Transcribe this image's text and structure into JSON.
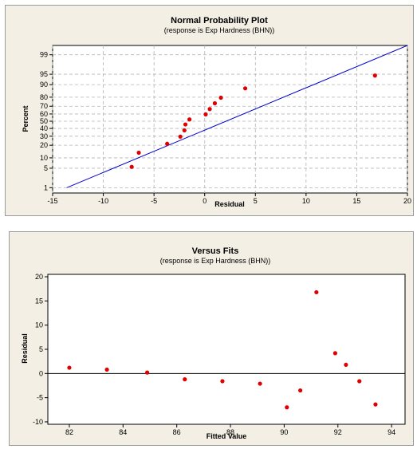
{
  "chart_data": [
    {
      "type": "scatter",
      "title": "Normal Probability Plot",
      "subtitle": "(response is Exp Hardness (BHN))",
      "xlabel": "Residual",
      "ylabel": "Percent",
      "xlim": [
        -15,
        20
      ],
      "x_ticks": [
        "-15",
        "-10",
        "-5",
        "0",
        "5",
        "10",
        "15",
        "20"
      ],
      "y_scale": "normal-probability",
      "y_ticks": [
        "1",
        "5",
        "10",
        "20",
        "30",
        "40",
        "50",
        "60",
        "70",
        "80",
        "90",
        "95",
        "99"
      ],
      "grid": true,
      "points": [
        {
          "x": -7.2,
          "y": 5.5
        },
        {
          "x": -6.5,
          "y": 13.5
        },
        {
          "x": -3.7,
          "y": 21.5
        },
        {
          "x": -2.4,
          "y": 29.5
        },
        {
          "x": -2.0,
          "y": 37.5
        },
        {
          "x": -1.9,
          "y": 45.5
        },
        {
          "x": -1.5,
          "y": 52.5
        },
        {
          "x": 0.1,
          "y": 59.5
        },
        {
          "x": 0.5,
          "y": 66.5
        },
        {
          "x": 1.0,
          "y": 73.5
        },
        {
          "x": 1.6,
          "y": 79.5
        },
        {
          "x": 4.0,
          "y": 87.5
        },
        {
          "x": 16.8,
          "y": 94.5
        }
      ],
      "fit_line": {
        "x": [
          -13.6,
          20
        ],
        "y": [
          1,
          99.6
        ]
      },
      "point_color": "#e00000",
      "line_color": "#0000cc"
    },
    {
      "type": "scatter",
      "title": "Versus Fits",
      "subtitle": "(response is Exp Hardness (BHN))",
      "xlabel": "Fitted Value",
      "ylabel": "Residual",
      "xlim": [
        81.2,
        94.5
      ],
      "ylim": [
        -10.5,
        20.5
      ],
      "x_ticks": [
        "82",
        "84",
        "86",
        "88",
        "90",
        "92",
        "94"
      ],
      "y_ticks": [
        "-10",
        "-5",
        "0",
        "5",
        "10",
        "15",
        "20"
      ],
      "reference_line_y": 0,
      "grid": false,
      "points": [
        {
          "x": 82.0,
          "y": 1.2
        },
        {
          "x": 83.4,
          "y": 0.8
        },
        {
          "x": 84.9,
          "y": 0.2
        },
        {
          "x": 86.3,
          "y": -1.2
        },
        {
          "x": 87.7,
          "y": -1.6
        },
        {
          "x": 89.1,
          "y": -2.1
        },
        {
          "x": 90.1,
          "y": -7.0
        },
        {
          "x": 90.6,
          "y": -3.5
        },
        {
          "x": 91.2,
          "y": 16.8
        },
        {
          "x": 91.9,
          "y": 4.2
        },
        {
          "x": 92.3,
          "y": 1.8
        },
        {
          "x": 92.8,
          "y": -1.6
        },
        {
          "x": 93.4,
          "y": -6.4
        }
      ],
      "point_color": "#e00000",
      "ref_line_color": "#000000"
    }
  ]
}
